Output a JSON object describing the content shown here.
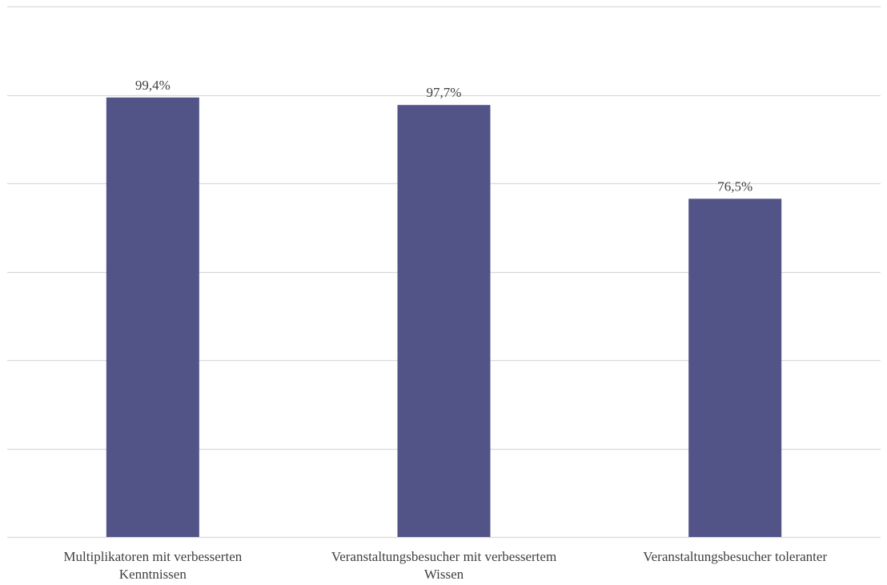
{
  "chart_data": {
    "type": "bar",
    "categories": [
      "Multiplikatoren mit verbesserten Kenntnissen",
      "Veranstaltungsbesucher mit verbessertem Wissen",
      "Veranstaltungsbesucher toleranter"
    ],
    "category_lines": [
      [
        "Multiplikatoren mit verbesserten",
        "Kenntnissen"
      ],
      [
        "Veranstaltungsbesucher mit verbessertem",
        "Wissen"
      ],
      [
        "Veranstaltungsbesucher toleranter"
      ]
    ],
    "values": [
      99.4,
      97.7,
      76.5
    ],
    "data_labels": [
      "99,4%",
      "97,7%",
      "76,5%"
    ],
    "ylim": [
      0,
      120
    ],
    "gridline_step": 20,
    "grid": true,
    "y_axis_labels_shown": false,
    "legend": "none",
    "colors": {
      "bar": "#525487",
      "grid": "#d9d9d9",
      "text": "#404040"
    }
  }
}
